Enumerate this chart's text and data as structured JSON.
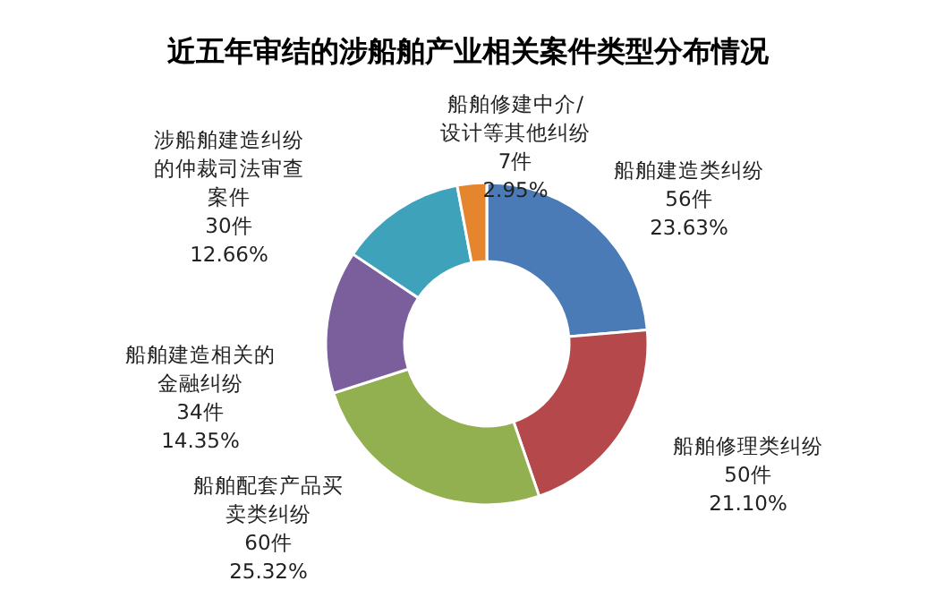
{
  "chart_data": {
    "type": "donut",
    "title": "近五年审结的涉船舶产业相关案件类型分布情况",
    "categories": [
      "船舶建造类纠纷",
      "船舶修理类纠纷",
      "船舶配套产品买卖类纠纷",
      "船舶建造相关的金融纠纷",
      "涉船舶建造纠纷的仲裁司法审查案件",
      "船舶修建中介/设计等其他纠纷"
    ],
    "values": [
      56,
      50,
      60,
      34,
      30,
      7
    ],
    "value_labels": [
      "56件\n23.63%",
      "50件\n21.10%",
      "60件\n25.32%",
      "34件\n14.35%",
      "30件\n12.66%",
      "7件\n2.95%"
    ],
    "colors": [
      "#4a7bb7",
      "#b4484a",
      "#93b050",
      "#7b5f9c",
      "#3ea3ba",
      "#e5862e"
    ]
  }
}
